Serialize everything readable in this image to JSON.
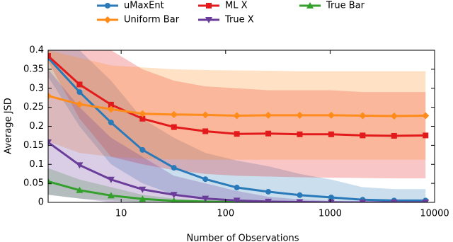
{
  "chart_data": {
    "type": "line",
    "x": [
      2,
      4,
      8,
      16,
      32,
      64,
      128,
      256,
      512,
      1024,
      2048,
      4096,
      8192
    ],
    "xlabel": "Number of Observations",
    "ylabel": "Average JSD",
    "xlim": [
      2,
      10000
    ],
    "xticks": [
      10,
      100,
      1000,
      10000
    ],
    "xscale": "log",
    "ylim": [
      0,
      0.4
    ],
    "yticks": [
      0,
      0.05,
      0.1,
      0.15,
      0.2,
      0.25,
      0.3,
      0.35,
      0.4
    ],
    "legend": "top",
    "series": [
      {
        "name": "uMaxEnt",
        "color": "#2a7ab9",
        "marker": "circle",
        "values": [
          0.38,
          0.29,
          0.21,
          0.138,
          0.091,
          0.061,
          0.039,
          0.028,
          0.019,
          0.013,
          0.007,
          0.005,
          0.005
        ],
        "upper": [
          0.4,
          0.4,
          0.32,
          0.22,
          0.17,
          0.13,
          0.11,
          0.095,
          0.075,
          0.06,
          0.04,
          0.035,
          0.035
        ],
        "lower": [
          0.33,
          0.2,
          0.1,
          0.05,
          0.02,
          0.01,
          0,
          0,
          0,
          0,
          0,
          0,
          0
        ]
      },
      {
        "name": "ML X",
        "color": "#e31a1c",
        "marker": "square",
        "values": [
          0.385,
          0.31,
          0.257,
          0.22,
          0.198,
          0.187,
          0.18,
          0.181,
          0.179,
          0.179,
          0.176,
          0.175,
          0.176
        ],
        "upper": [
          0.4,
          0.4,
          0.4,
          0.35,
          0.32,
          0.305,
          0.3,
          0.295,
          0.295,
          0.295,
          0.29,
          0.29,
          0.29
        ],
        "lower": [
          0.37,
          0.22,
          0.12,
          0.1,
          0.085,
          0.075,
          0.07,
          0.068,
          0.066,
          0.065,
          0.064,
          0.063,
          0.063
        ]
      },
      {
        "name": "True Bar",
        "color": "#33a02c",
        "marker": "triangle-up",
        "values": [
          0.055,
          0.032,
          0.018,
          0.009,
          0.004,
          0.002,
          0.001,
          0.001,
          0,
          0,
          0,
          0,
          0
        ],
        "upper": [
          0.09,
          0.06,
          0.04,
          0.02,
          0.01,
          0.005,
          0.003,
          0.002,
          0.001,
          0,
          0,
          0,
          0
        ],
        "lower": [
          0.02,
          0.01,
          0.005,
          0,
          0,
          0,
          0,
          0,
          0,
          0,
          0,
          0,
          0
        ]
      },
      {
        "name": "Uniform Bar",
        "color": "#ff8c1a",
        "marker": "diamond",
        "values": [
          0.28,
          0.258,
          0.245,
          0.233,
          0.231,
          0.23,
          0.228,
          0.229,
          0.229,
          0.229,
          0.228,
          0.227,
          0.228
        ],
        "upper": [
          0.4,
          0.38,
          0.36,
          0.355,
          0.35,
          0.348,
          0.347,
          0.346,
          0.345,
          0.345,
          0.345,
          0.345,
          0.345
        ],
        "lower": [
          0.16,
          0.13,
          0.12,
          0.115,
          0.113,
          0.112,
          0.112,
          0.112,
          0.112,
          0.112,
          0.112,
          0.112,
          0.112
        ]
      },
      {
        "name": "True X",
        "color": "#6a3d9a",
        "marker": "triangle-down",
        "values": [
          0.158,
          0.098,
          0.06,
          0.034,
          0.02,
          0.01,
          0.005,
          0.002,
          0.001,
          0,
          0,
          0,
          0
        ],
        "upper": [
          0.35,
          0.25,
          0.17,
          0.12,
          0.07,
          0.05,
          0.03,
          0.015,
          0.008,
          0.004,
          0.002,
          0.001,
          0.001
        ],
        "lower": [
          0.02,
          0.01,
          0,
          0,
          0,
          0,
          0,
          0,
          0,
          0,
          0,
          0,
          0
        ]
      }
    ]
  }
}
